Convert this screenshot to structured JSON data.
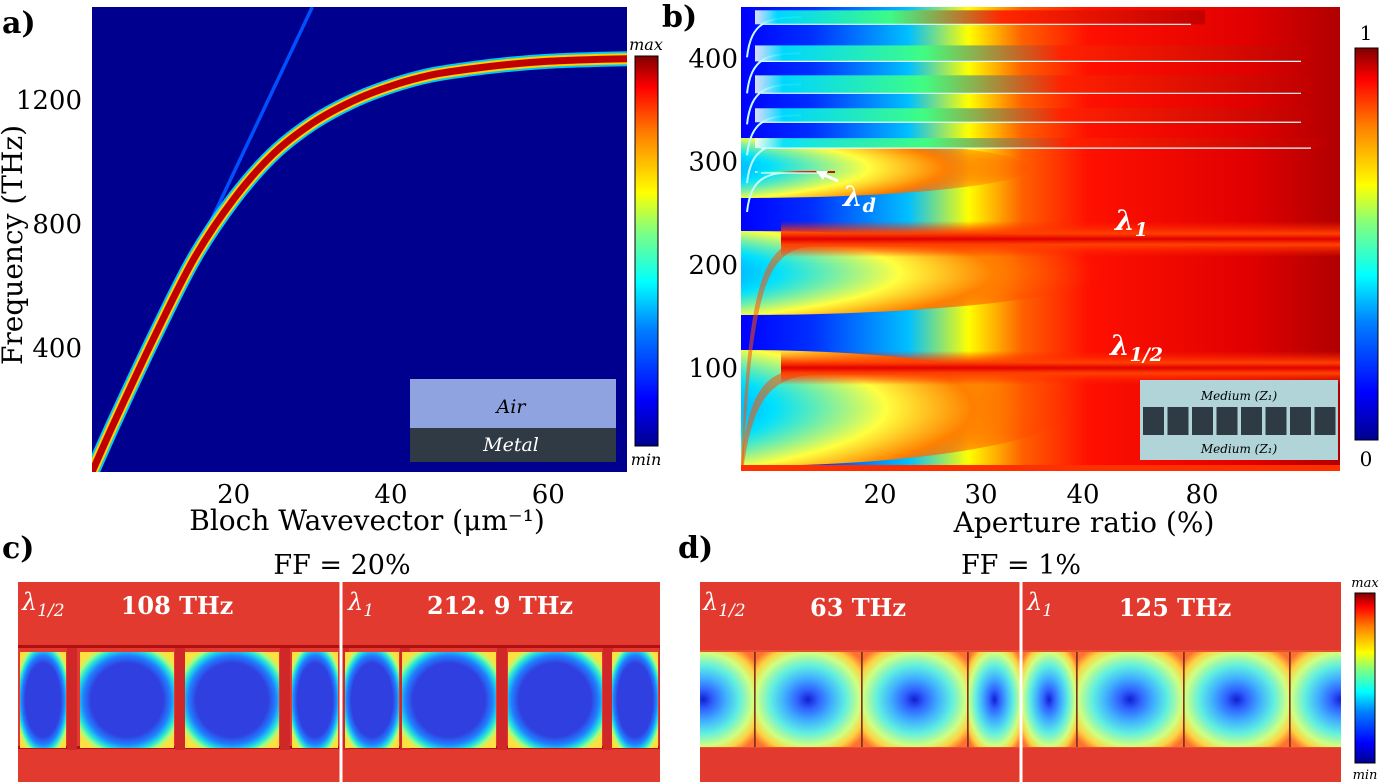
{
  "colors": {
    "jet": [
      "#00008f",
      "#0000ff",
      "#0080ff",
      "#00ffff",
      "#80ff80",
      "#ffff00",
      "#ff8000",
      "#ff0000",
      "#800000"
    ],
    "map_bg": "#00008f",
    "air": "#8fa3e0",
    "metal": "#2f3a45",
    "inset_b_bg": "#b0d4d8",
    "inset_b_block": "#2e3a44",
    "field_bg": "#e23a2f"
  },
  "chart_data": [
    {
      "panel": "a)",
      "type": "heatmap",
      "description_type": "dispersion map",
      "xlabel": "Bloch Wavevector (μm⁻¹)",
      "ylabel": "Frequency (THz)",
      "xlim": [
        2,
        70
      ],
      "ylim": [
        0,
        1500
      ],
      "xticks": [
        20,
        40,
        60
      ],
      "yticks": [
        400,
        800,
        1200
      ],
      "xtick_labels": [
        "20",
        "40",
        "60"
      ],
      "ytick_labels": [
        "400",
        "800",
        "1200"
      ],
      "colorbar": {
        "max_label": "max",
        "min_label": "min"
      },
      "series": [
        {
          "name": "light line",
          "x": [
            2,
            30
          ],
          "y": [
            0,
            1500
          ]
        },
        {
          "name": "surface plasmon",
          "x": [
            2,
            5,
            10,
            15,
            20,
            25,
            30,
            35,
            40,
            45,
            50,
            55,
            60,
            65,
            70
          ],
          "y": [
            0,
            170,
            440,
            690,
            880,
            1025,
            1125,
            1195,
            1245,
            1280,
            1300,
            1315,
            1325,
            1330,
            1333
          ]
        }
      ],
      "inset": {
        "top_label": "Air",
        "bottom_label": "Metal"
      }
    },
    {
      "panel": "b)",
      "type": "heatmap",
      "description_type": "transmission map",
      "xlabel": "Aperture ratio (%)",
      "ylabel": "",
      "ylim": [
        0,
        450
      ],
      "xtick_labels": [
        "20",
        "30",
        "40",
        "80"
      ],
      "ytick_labels": [
        "100",
        "200",
        "300",
        "400"
      ],
      "yticks": [
        100,
        200,
        300,
        400
      ],
      "colorbar": {
        "max_label": "1",
        "min_label": "0"
      },
      "bands": [
        {
          "name": "λ1/2",
          "center_thz": 100
        },
        {
          "name": "λ1",
          "center_thz": 225
        },
        {
          "name": "λd",
          "center_thz": 290
        },
        {
          "name": "higher",
          "center_thz": 318
        },
        {
          "name": "higher",
          "center_thz": 345
        },
        {
          "name": "higher",
          "center_thz": 375
        },
        {
          "name": "higher",
          "center_thz": 405
        },
        {
          "name": "higher",
          "center_thz": 440
        }
      ],
      "annotations": {
        "lambda_d": "λ",
        "lambda_d_sub": "d",
        "lambda_1": "λ",
        "lambda_1_sub": "1",
        "lambda_half": "λ",
        "lambda_half_sub": "1/2"
      },
      "inset": {
        "top_label": "Medium (Z₁)",
        "bottom_label": "Medium (Z₁)"
      }
    }
  ],
  "panels": {
    "a": {
      "label": "a)"
    },
    "b": {
      "label": "b)"
    },
    "c": {
      "label": "c)",
      "title": "FF = 20%",
      "left": {
        "mode": "λ",
        "mode_sub": "1/2",
        "freq": "108 THz"
      },
      "right": {
        "mode": "λ",
        "mode_sub": "1",
        "freq": "212. 9 THz"
      }
    },
    "d": {
      "label": "d)",
      "title": "FF = 1%",
      "left": {
        "mode": "λ",
        "mode_sub": "1/2",
        "freq": "63 THz"
      },
      "right": {
        "mode": "λ",
        "mode_sub": "1",
        "freq": "125 THz"
      },
      "colorbar": {
        "max_label": "max",
        "min_label": "min"
      }
    }
  }
}
